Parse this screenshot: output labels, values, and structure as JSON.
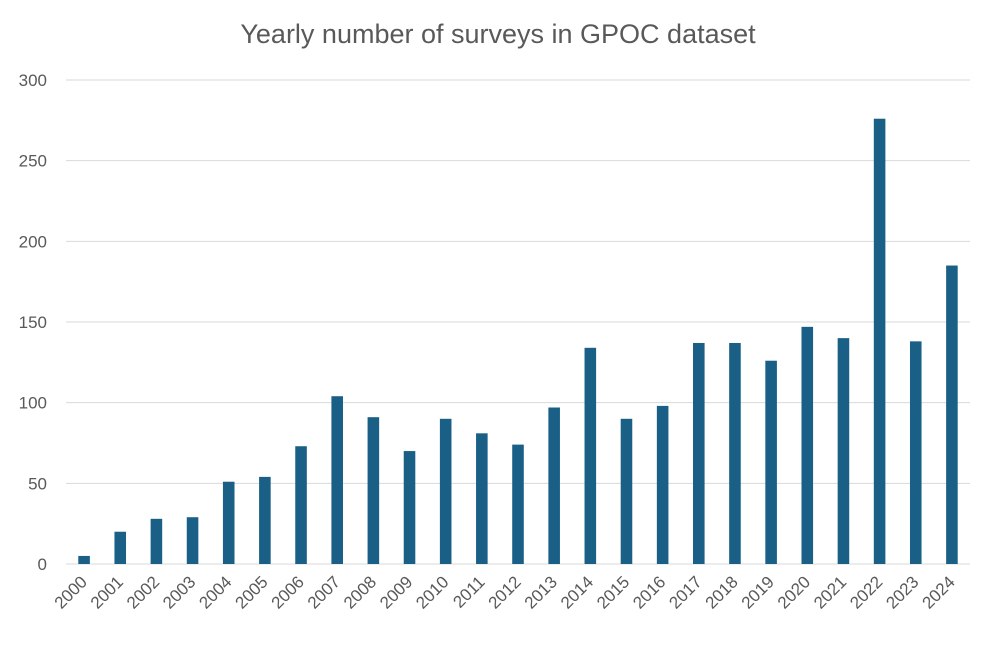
{
  "chart_data": {
    "type": "bar",
    "title": "Yearly number of surveys in GPOC dataset",
    "xlabel": "",
    "ylabel": "",
    "ylim": [
      0,
      300
    ],
    "yticks": [
      0,
      50,
      100,
      150,
      200,
      250,
      300
    ],
    "grid": true,
    "legend": "none",
    "bar_color": "#1a5f86",
    "categories": [
      "2000",
      "2001",
      "2002",
      "2003",
      "2004",
      "2005",
      "2006",
      "2007",
      "2008",
      "2009",
      "2010",
      "2011",
      "2012",
      "2013",
      "2014",
      "2015",
      "2016",
      "2017",
      "2018",
      "2019",
      "2020",
      "2021",
      "2022",
      "2023",
      "2024"
    ],
    "values": [
      5,
      20,
      28,
      29,
      51,
      54,
      73,
      104,
      91,
      70,
      90,
      81,
      74,
      97,
      134,
      90,
      98,
      137,
      137,
      126,
      147,
      140,
      276,
      138,
      185
    ]
  }
}
